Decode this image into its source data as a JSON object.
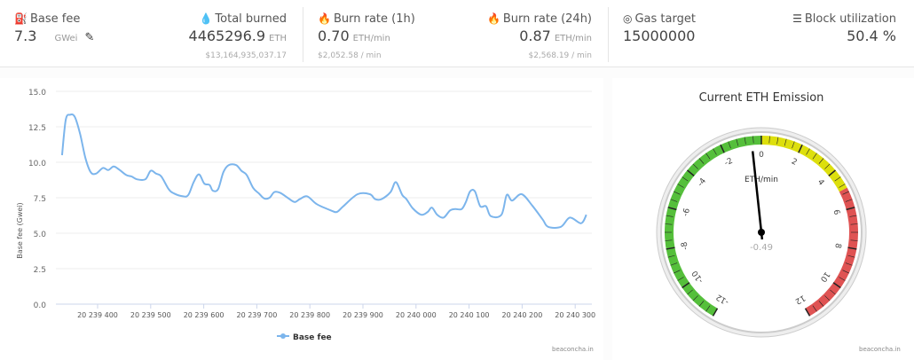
{
  "header": {
    "base_fee": {
      "label": "Base fee",
      "value": "7.3",
      "unit": "GWei",
      "icon": "gas-pump-icon",
      "edit_icon": "pencil-icon"
    },
    "total_burned": {
      "label": "Total burned",
      "value": "4465296.9",
      "unit": "ETH",
      "usd": "$13,164,935,037.17",
      "icon": "fire-drop-icon"
    },
    "burn_rate_1h": {
      "label": "Burn rate (1h)",
      "value": "0.70",
      "unit": "ETH/min",
      "usd": "$2,052.58 / min",
      "icon": "fire-icon"
    },
    "burn_rate_24h": {
      "label": "Burn rate (24h)",
      "value": "0.87",
      "unit": "ETH/min",
      "usd": "$2,568.19 / min",
      "icon": "fire-alt-icon"
    },
    "gas_target": {
      "label": "Gas target",
      "value": "15000000",
      "icon": "bullseye-icon"
    },
    "block_utilization": {
      "label": "Block utilization",
      "value": "50.4 %",
      "icon": "database-icon"
    }
  },
  "chart_data": [
    {
      "type": "line",
      "ylabel": "Base fee (Gwei)",
      "legend": "Base fee",
      "legend_position": "bottom",
      "ylim": [
        0,
        15
      ],
      "yticks": [
        "0.0",
        "2.5",
        "5.0",
        "7.5",
        "10.0",
        "12.5",
        "15.0"
      ],
      "xticks": [
        20239400,
        20239500,
        20239600,
        20239700,
        20239800,
        20239900,
        20240000,
        20240100,
        20240200,
        20240300
      ],
      "xtick_labels": [
        "20 239 400",
        "20 239 500",
        "20 239 600",
        "20 239 700",
        "20 239 800",
        "20 239 900",
        "20 240 000",
        "20 240 100",
        "20 240 200",
        "20 240 300"
      ],
      "grid": true,
      "color": "#7cb5ec",
      "credit": "beaconcha.in",
      "series": [
        {
          "name": "Base fee",
          "x": [
            20239333,
            20239340,
            20239348,
            20239357,
            20239367,
            20239377,
            20239387,
            20239397,
            20239410,
            20239420,
            20239430,
            20239440,
            20239454,
            20239464,
            20239474,
            20239490,
            20239500,
            20239510,
            20239520,
            20239534,
            20239544,
            20239561,
            20239571,
            20239581,
            20239591,
            20239601,
            20239611,
            20239617,
            20239627,
            20239637,
            20239647,
            20239661,
            20239671,
            20239681,
            20239693,
            20239704,
            20239714,
            20239724,
            20239733,
            20239744,
            20239758,
            20239771,
            20239781,
            20239795,
            20239813,
            20239840,
            20239851,
            20239863,
            20239890,
            20239913,
            20239923,
            20239935,
            20239952,
            20239962,
            20239974,
            20239982,
            20239994,
            20240010,
            20240022,
            20240030,
            20240040,
            20240052,
            20240064,
            20240074,
            20240086,
            20240094,
            20240102,
            20240111,
            20240121,
            20240132,
            20240141,
            20240161,
            20240171,
            20240181,
            20240199,
            20240219,
            20240239,
            20240249,
            20240273,
            20240290,
            20240311,
            20240321
          ],
          "y": [
            10.5,
            13.0,
            13.35,
            13.2,
            12.0,
            10.3,
            9.3,
            9.2,
            9.6,
            9.45,
            9.7,
            9.5,
            9.1,
            9.0,
            8.8,
            8.8,
            9.4,
            9.2,
            9.0,
            8.1,
            7.8,
            7.6,
            7.7,
            8.6,
            9.15,
            8.5,
            8.4,
            8.0,
            8.1,
            9.3,
            9.8,
            9.8,
            9.4,
            9.1,
            8.2,
            7.8,
            7.45,
            7.5,
            7.9,
            7.85,
            7.5,
            7.2,
            7.4,
            7.6,
            7.05,
            6.6,
            6.5,
            6.9,
            7.75,
            7.75,
            7.4,
            7.4,
            7.9,
            8.6,
            7.7,
            7.4,
            6.75,
            6.3,
            6.5,
            6.8,
            6.3,
            6.1,
            6.6,
            6.7,
            6.7,
            7.2,
            7.95,
            7.95,
            6.9,
            6.9,
            6.2,
            6.3,
            7.7,
            7.3,
            7.75,
            6.95,
            5.95,
            5.45,
            5.45,
            6.1,
            5.7,
            6.3
          ]
        }
      ]
    },
    {
      "type": "gauge",
      "title": "Current ETH Emission",
      "unit": "ETH/min",
      "value": -0.49,
      "value_label": "-0.49",
      "min": -12,
      "max": 12,
      "tick_labels": [
        "-12",
        "-10",
        "-8",
        "-6",
        "-4",
        "-2",
        "0",
        "2",
        "4",
        "6",
        "8",
        "10",
        "12"
      ],
      "bands": [
        {
          "from": -12,
          "to": 0,
          "color": "#55bf3b"
        },
        {
          "from": 0,
          "to": 5,
          "color": "#dddf0d"
        },
        {
          "from": 5,
          "to": 12,
          "color": "#df5353"
        }
      ],
      "credit": "beaconcha.in"
    }
  ]
}
